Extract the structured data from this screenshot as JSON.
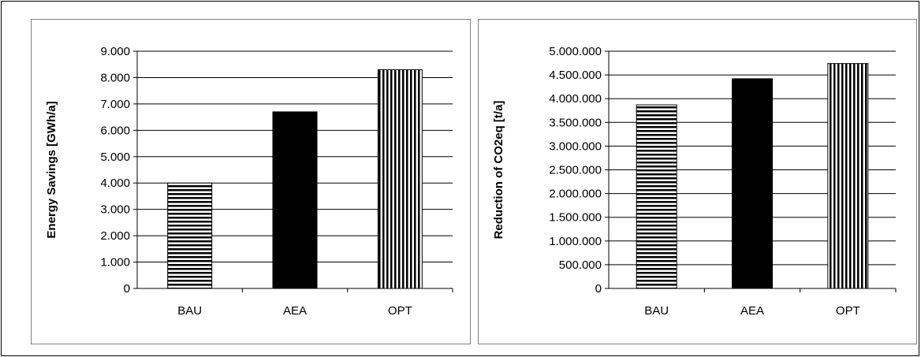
{
  "chart_data": [
    {
      "type": "bar",
      "categories": [
        "BAU",
        "AEA",
        "OPT"
      ],
      "values": [
        4000,
        6700,
        8300
      ],
      "ylabel": "Energy Savings [GWh/a]",
      "xlabel": "",
      "ylim": [
        0,
        9000
      ],
      "ytick_step": 1000,
      "ytick_labels": [
        "0",
        "1.000",
        "2.000",
        "3.000",
        "4.000",
        "5.000",
        "6.000",
        "7.000",
        "8.000",
        "9.000"
      ],
      "grid": true,
      "legend": "none",
      "bar_patterns": [
        "horizontal-stripes",
        "solid",
        "vertical-stripes"
      ]
    },
    {
      "type": "bar",
      "categories": [
        "BAU",
        "AEA",
        "OPT"
      ],
      "values": [
        3870000,
        4420000,
        4740000
      ],
      "ylabel": "Reduction of CO2eq [t/a]",
      "xlabel": "",
      "ylim": [
        0,
        5000000
      ],
      "ytick_step": 500000,
      "ytick_labels": [
        "0",
        "500.000",
        "1.000.000",
        "1.500.000",
        "2.000.000",
        "2.500.000",
        "3.000.000",
        "3.500.000",
        "4.000.000",
        "4.500.000",
        "5.000.000"
      ],
      "grid": true,
      "legend": "none",
      "bar_patterns": [
        "horizontal-stripes",
        "solid",
        "vertical-stripes"
      ]
    }
  ],
  "colors": {
    "bar_fill": "#000000",
    "gridline": "#000000",
    "panel_border": "#808080",
    "background": "#ffffff"
  }
}
